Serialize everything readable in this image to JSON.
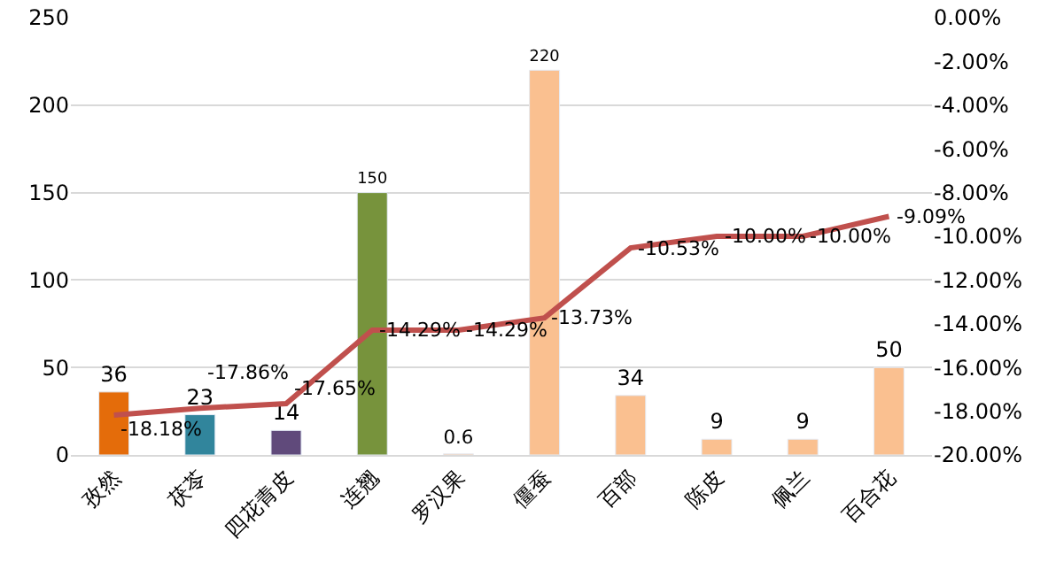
{
  "chart_data": {
    "type": "bar",
    "categories": [
      "孜然",
      "茯苓",
      "四花青皮",
      "连翘",
      "罗汉果",
      "僵蚕",
      "百部",
      "陈皮",
      "佩兰",
      "百合花"
    ],
    "series": [
      {
        "colors": [
          "#e46c0a",
          "#31859c",
          "#604a7b",
          "#77933c",
          "#fac090",
          "#fac090",
          "#fac090",
          "#fac090",
          "#fac090",
          "#fac090"
        ],
        "values": [
          36,
          23,
          14,
          150,
          0.6,
          220,
          34,
          9,
          9,
          50
        ],
        "data_labels": true
      },
      {
        "type": "line",
        "axis": "y2",
        "color": "#c0504d",
        "values": [
          -18.18,
          -17.86,
          -17.65,
          -14.29,
          -14.29,
          -13.73,
          -10.53,
          -10.0,
          -10.0,
          -9.09
        ],
        "value_labels": [
          "-18.18%",
          "-17.86%",
          "-17.65%",
          "-14.29%",
          "-14.29%",
          "-13.73%",
          "-10.53%",
          "-10.00%",
          "-10.00%",
          "-9.09%"
        ],
        "marker": "none"
      }
    ],
    "ylim": [
      0,
      250
    ],
    "yticks": [
      0,
      50,
      100,
      150,
      200,
      250
    ],
    "y2lim": [
      -20,
      0
    ],
    "y2ticks": [
      {
        "value": -20,
        "label": "-20.00%"
      },
      {
        "value": -18,
        "label": "-18.00%"
      },
      {
        "value": -16,
        "label": "-16.00%"
      },
      {
        "value": -14,
        "label": "-14.00%"
      },
      {
        "value": -12,
        "label": "-12.00%"
      },
      {
        "value": -10,
        "label": "-10.00%"
      },
      {
        "value": -8,
        "label": "-8.00%"
      },
      {
        "value": -6,
        "label": "-6.00%"
      },
      {
        "value": -4,
        "label": "-4.00%"
      },
      {
        "value": -2,
        "label": "-2.00%"
      },
      {
        "value": 0,
        "label": "0.00%"
      }
    ],
    "grid": "y",
    "legend": false
  }
}
